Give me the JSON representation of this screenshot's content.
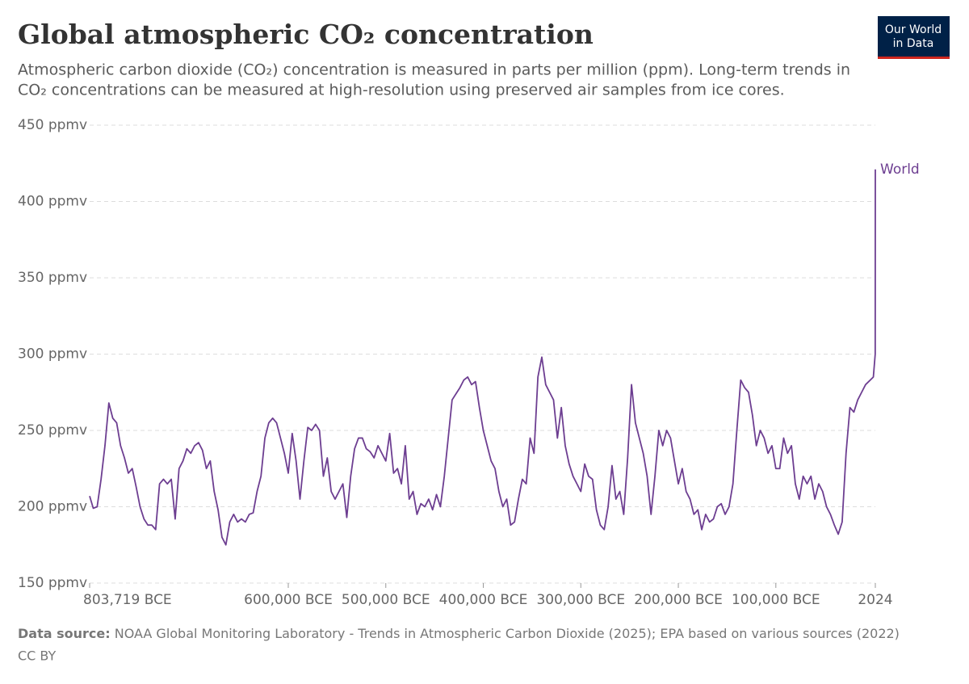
{
  "logo": {
    "line1": "Our World",
    "line2": "in Data"
  },
  "chart_data": {
    "type": "line",
    "title": "Global atmospheric CO₂ concentration",
    "subtitle": [
      "Atmospheric carbon dioxide (CO₂) concentration is measured in parts per million (ppm). Long-term trends in",
      "CO₂ concentrations can be measured at high-resolution using preserved air samples from ice cores."
    ],
    "source_label": "Data source:",
    "source": "NOAA Global Monitoring Laboratory - Trends in Atmospheric Carbon Dioxide (2025); EPA based on various sources (2022)",
    "license": "CC BY",
    "xlim": [
      -803719,
      2024
    ],
    "xticks": [
      {
        "value": -803719,
        "label": "803,719 BCE"
      },
      {
        "value": -600000,
        "label": "600,000 BCE"
      },
      {
        "value": -500000,
        "label": "500,000 BCE"
      },
      {
        "value": -400000,
        "label": "400,000 BCE"
      },
      {
        "value": -300000,
        "label": "300,000 BCE"
      },
      {
        "value": -200000,
        "label": "200,000 BCE"
      },
      {
        "value": -100000,
        "label": "100,000 BCE"
      },
      2024
    ],
    "ylim": [
      150,
      450
    ],
    "yticks": [
      {
        "value": 150,
        "label": "150 ppmv"
      },
      {
        "value": 200,
        "label": "200 ppmv"
      },
      {
        "value": 250,
        "label": "250 ppmv"
      },
      {
        "value": 300,
        "label": "300 ppmv"
      },
      {
        "value": 350,
        "label": "350 ppmv"
      },
      {
        "value": 400,
        "label": "400 ppmv"
      },
      {
        "value": 450,
        "label": "450 ppmv"
      }
    ],
    "grid": true,
    "x": [
      -803719,
      -800000,
      -796000,
      -792000,
      -788000,
      -784000,
      -780000,
      -776000,
      -772000,
      -768000,
      -764000,
      -760000,
      -756000,
      -752000,
      -748000,
      -744000,
      -740000,
      -736000,
      -732000,
      -728000,
      -724000,
      -720000,
      -716000,
      -712000,
      -708000,
      -704000,
      -700000,
      -696000,
      -692000,
      -688000,
      -684000,
      -680000,
      -676000,
      -672000,
      -668000,
      -664000,
      -660000,
      -656000,
      -652000,
      -648000,
      -644000,
      -640000,
      -636000,
      -632000,
      -628000,
      -624000,
      -620000,
      -616000,
      -612000,
      -608000,
      -604000,
      -600000,
      -596000,
      -592000,
      -588000,
      -584000,
      -580000,
      -576000,
      -572000,
      -568000,
      -564000,
      -560000,
      -556000,
      -552000,
      -548000,
      -544000,
      -540000,
      -536000,
      -532000,
      -528000,
      -524000,
      -520000,
      -516000,
      -512000,
      -508000,
      -504000,
      -500000,
      -496000,
      -492000,
      -488000,
      -484000,
      -480000,
      -476000,
      -472000,
      -468000,
      -464000,
      -460000,
      -456000,
      -452000,
      -448000,
      -444000,
      -440000,
      -436000,
      -432000,
      -428000,
      -424000,
      -420000,
      -416000,
      -412000,
      -408000,
      -404000,
      -400000,
      -396000,
      -392000,
      -388000,
      -384000,
      -380000,
      -376000,
      -372000,
      -368000,
      -364000,
      -360000,
      -356000,
      -352000,
      -348000,
      -344000,
      -340000,
      -336000,
      -332000,
      -328000,
      -324000,
      -320000,
      -316000,
      -312000,
      -308000,
      -304000,
      -300000,
      -296000,
      -292000,
      -288000,
      -284000,
      -280000,
      -276000,
      -272000,
      -268000,
      -264000,
      -260000,
      -256000,
      -252000,
      -248000,
      -244000,
      -240000,
      -236000,
      -232000,
      -228000,
      -224000,
      -220000,
      -216000,
      -212000,
      -208000,
      -204000,
      -200000,
      -196000,
      -192000,
      -188000,
      -184000,
      -180000,
      -176000,
      -172000,
      -168000,
      -164000,
      -160000,
      -156000,
      -152000,
      -148000,
      -144000,
      -140000,
      -136000,
      -132000,
      -128000,
      -124000,
      -120000,
      -116000,
      -112000,
      -108000,
      -104000,
      -100000,
      -96000,
      -92000,
      -88000,
      -84000,
      -80000,
      -76000,
      -72000,
      -68000,
      -64000,
      -60000,
      -56000,
      -52000,
      -48000,
      -44000,
      -40000,
      -36000,
      -32000,
      -28000,
      -24000,
      -20000,
      -16000,
      -12000,
      -8000,
      0,
      1910,
      2024
    ],
    "series": [
      {
        "name": "World",
        "color": "#6d3e91",
        "values": [
          207,
          199,
          200,
          218,
          240,
          268,
          258,
          255,
          240,
          232,
          222,
          225,
          213,
          200,
          192,
          188,
          188,
          185,
          215,
          218,
          215,
          218,
          192,
          225,
          230,
          238,
          235,
          240,
          242,
          237,
          225,
          230,
          210,
          198,
          180,
          175,
          190,
          195,
          190,
          192,
          190,
          195,
          196,
          210,
          220,
          245,
          255,
          258,
          255,
          245,
          235,
          222,
          248,
          230,
          205,
          230,
          252,
          250,
          254,
          250,
          220,
          232,
          210,
          205,
          210,
          215,
          193,
          220,
          238,
          245,
          245,
          238,
          236,
          232,
          240,
          235,
          230,
          248,
          222,
          225,
          215,
          240,
          205,
          210,
          195,
          202,
          200,
          205,
          198,
          208,
          200,
          220,
          245,
          270,
          274,
          278,
          283,
          285,
          280,
          282,
          265,
          250,
          240,
          230,
          225,
          210,
          200,
          205,
          188,
          190,
          205,
          218,
          215,
          245,
          235,
          285,
          298,
          280,
          275,
          270,
          245,
          265,
          240,
          228,
          220,
          215,
          210,
          228,
          220,
          218,
          198,
          188,
          185,
          200,
          227,
          205,
          210,
          195,
          232,
          280,
          255,
          245,
          235,
          220,
          195,
          220,
          250,
          240,
          250,
          245,
          230,
          215,
          225,
          210,
          205,
          195,
          198,
          185,
          195,
          190,
          192,
          200,
          202,
          195,
          200,
          215,
          250,
          283,
          278,
          275,
          260,
          240,
          250,
          245,
          235,
          240,
          225,
          225,
          245,
          235,
          240,
          215,
          205,
          220,
          215,
          220,
          205,
          215,
          210,
          200,
          195,
          188,
          182,
          190,
          235,
          265,
          262,
          270,
          275,
          280,
          285,
          300,
          421
        ]
      }
    ]
  }
}
